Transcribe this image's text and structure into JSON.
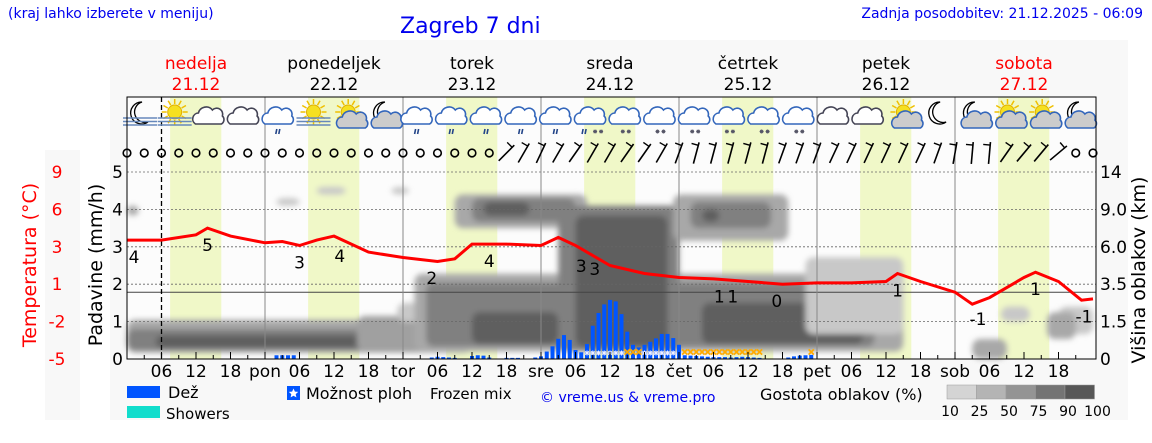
{
  "header": {
    "hint": "(kraj lahko izberete v meniju)",
    "title": "Zagreb 7 dni",
    "updated": "Zadnja posodobitev: 21.12.2025 - 06:09"
  },
  "days": [
    {
      "name": "nedelja",
      "date": "21.12",
      "weekend": true
    },
    {
      "name": "ponedeljek",
      "date": "22.12",
      "weekend": false
    },
    {
      "name": "torek",
      "date": "23.12",
      "weekend": false
    },
    {
      "name": "sreda",
      "date": "24.12",
      "weekend": false
    },
    {
      "name": "četrtek",
      "date": "25.12",
      "weekend": false
    },
    {
      "name": "petek",
      "date": "26.12",
      "weekend": false
    },
    {
      "name": "sobota",
      "date": "27.12",
      "weekend": true
    }
  ],
  "colors": {
    "weekend": "#ff0000",
    "weekday": "#000000",
    "temperature": "#ff0000",
    "rain": "#0055ff",
    "showers": "#11ddcc",
    "frozen": "#ffaa00",
    "daylight": "#f0f8c8"
  },
  "chart_data": {
    "type": "meteogram",
    "x_tick_labels": [
      "06",
      "12",
      "18",
      "pon",
      "06",
      "12",
      "18",
      "tor",
      "06",
      "12",
      "18",
      "sre",
      "06",
      "12",
      "18",
      "čet",
      "06",
      "12",
      "18",
      "pet",
      "06",
      "12",
      "18",
      "sob",
      "06",
      "12",
      "18"
    ],
    "now_hour": 6,
    "daylight": {
      "sunrise_hour": 7.5,
      "sunset_hour": 16.4
    },
    "precip_axis": {
      "label": "Padavine (mm/h)",
      "ticks": [
        "0",
        "1",
        "2",
        "3",
        "4",
        "5"
      ],
      "range": [
        0,
        5
      ]
    },
    "temp_axis": {
      "label": "Temperatura (°C)",
      "ticks": [
        "-5",
        "-2",
        "1",
        "3",
        "6",
        "9"
      ],
      "range": [
        -5,
        9
      ]
    },
    "cloud_axis": {
      "label": "Višina oblakov (km)",
      "ticks": [
        "0",
        "1.5",
        "3.5",
        "6.0",
        "9.0",
        "14"
      ],
      "knots_km": [
        0,
        1.5,
        3.5,
        6,
        9,
        14
      ]
    },
    "temperature": [
      [
        0,
        3.9
      ],
      [
        6,
        3.9
      ],
      [
        12,
        4.3
      ],
      [
        14,
        4.8
      ],
      [
        18,
        4.2
      ],
      [
        24,
        3.7
      ],
      [
        27,
        3.8
      ],
      [
        30,
        3.5
      ],
      [
        33,
        3.9
      ],
      [
        36,
        4.2
      ],
      [
        42,
        3.0
      ],
      [
        48,
        2.6
      ],
      [
        54,
        2.3
      ],
      [
        57,
        2.5
      ],
      [
        60,
        3.6
      ],
      [
        66,
        3.6
      ],
      [
        72,
        3.5
      ],
      [
        75,
        4.1
      ],
      [
        78,
        3.5
      ],
      [
        84,
        2.0
      ],
      [
        90,
        1.4
      ],
      [
        96,
        1.1
      ],
      [
        102,
        1.0
      ],
      [
        108,
        0.8
      ],
      [
        114,
        0.6
      ],
      [
        120,
        0.7
      ],
      [
        126,
        0.7
      ],
      [
        132,
        0.8
      ],
      [
        134,
        1.4
      ],
      [
        138,
        0.8
      ],
      [
        144,
        0.0
      ],
      [
        147,
        -0.9
      ],
      [
        150,
        -0.4
      ],
      [
        156,
        1.1
      ],
      [
        158,
        1.5
      ],
      [
        162,
        0.8
      ],
      [
        166,
        -0.6
      ],
      [
        168,
        -0.5
      ]
    ],
    "temperature_labels": [
      [
        0,
        "4"
      ],
      [
        14,
        "5"
      ],
      [
        30,
        "3"
      ],
      [
        37,
        "4"
      ],
      [
        53,
        "2"
      ],
      [
        63,
        "4"
      ],
      [
        79,
        "3"
      ],
      [
        80,
        "3"
      ],
      [
        103,
        "1"
      ],
      [
        104,
        "1"
      ],
      [
        113,
        "0"
      ],
      [
        134,
        "1"
      ],
      [
        148,
        "-1"
      ],
      [
        158,
        "1"
      ],
      [
        167,
        "-1"
      ]
    ],
    "precipitation_mm_h": [
      [
        26,
        0.1
      ],
      [
        27,
        0.1
      ],
      [
        28,
        0.1
      ],
      [
        29,
        0.1
      ],
      [
        53,
        0.04
      ],
      [
        54,
        0.06
      ],
      [
        55,
        0.05
      ],
      [
        56,
        0.04
      ],
      [
        57,
        0.03
      ],
      [
        60,
        0.08
      ],
      [
        61,
        0.1
      ],
      [
        62,
        0.09
      ],
      [
        63,
        0.04
      ],
      [
        66,
        0.03
      ],
      [
        67,
        0.03
      ],
      [
        68,
        0.03
      ],
      [
        71,
        0.04
      ],
      [
        72,
        0.07
      ],
      [
        73,
        0.2
      ],
      [
        74,
        0.34
      ],
      [
        75,
        0.54
      ],
      [
        76,
        0.64
      ],
      [
        77,
        0.51
      ],
      [
        78,
        0.24
      ],
      [
        79,
        0.18
      ],
      [
        80,
        0.4
      ],
      [
        81,
        0.89
      ],
      [
        82,
        1.23
      ],
      [
        83,
        1.46
      ],
      [
        84,
        1.58
      ],
      [
        85,
        1.54
      ],
      [
        86,
        1.2
      ],
      [
        87,
        0.73
      ],
      [
        88,
        0.38
      ],
      [
        89,
        0.31
      ],
      [
        90,
        0.38
      ],
      [
        91,
        0.46
      ],
      [
        92,
        0.55
      ],
      [
        93,
        0.67
      ],
      [
        94,
        0.67
      ],
      [
        95,
        0.56
      ],
      [
        96,
        0.38
      ],
      [
        97,
        0.1
      ],
      [
        98,
        0.09
      ],
      [
        99,
        0.08
      ],
      [
        100,
        0.07
      ],
      [
        101,
        0.06
      ],
      [
        102,
        0.05
      ],
      [
        103,
        0.05
      ],
      [
        104,
        0.05
      ],
      [
        105,
        0.04
      ],
      [
        106,
        0.05
      ],
      [
        107,
        0.06
      ],
      [
        108,
        0.05
      ],
      [
        109,
        0.04
      ],
      [
        110,
        0.03
      ],
      [
        115,
        0.04
      ],
      [
        116,
        0.07
      ],
      [
        117,
        0.09
      ],
      [
        118,
        0.1
      ],
      [
        119,
        0.11
      ]
    ],
    "frozen_mix_hours": [
      87,
      88,
      89,
      97,
      98,
      99,
      100,
      101,
      102,
      103,
      104,
      105,
      106,
      107,
      108,
      109,
      110,
      119
    ],
    "shower_chance_hours": [
      80,
      81,
      82,
      83,
      84,
      85,
      86,
      90,
      91,
      92,
      93,
      94,
      95
    ],
    "cloud_cover": [
      [
        0,
        60,
        0.25,
        1.6,
        50
      ],
      [
        0,
        55,
        0.35,
        1.2,
        75
      ],
      [
        5,
        50,
        0.45,
        0.95,
        90
      ],
      [
        40,
        60,
        0.3,
        1.8,
        60
      ],
      [
        0,
        2,
        8.5,
        9.5,
        50
      ],
      [
        26,
        30,
        9.5,
        10.5,
        25
      ],
      [
        33,
        38,
        11,
        12,
        25
      ],
      [
        46,
        49,
        11,
        12,
        25
      ],
      [
        47,
        52,
        1.5,
        2.5,
        25
      ],
      [
        50,
        135,
        0.3,
        4.2,
        50
      ],
      [
        52,
        130,
        0.5,
        3.6,
        75
      ],
      [
        60,
        75,
        0.6,
        2,
        90
      ],
      [
        100,
        128,
        0.6,
        2.5,
        90
      ],
      [
        57,
        80,
        7.5,
        11,
        50
      ],
      [
        60,
        78,
        8,
        10.5,
        75
      ],
      [
        62,
        70,
        8.5,
        10,
        90
      ],
      [
        75,
        96,
        0.3,
        9.5,
        75
      ],
      [
        78,
        94,
        0.5,
        8.5,
        90
      ],
      [
        95,
        115,
        6.5,
        11,
        50
      ],
      [
        98,
        112,
        7.5,
        10,
        75
      ],
      [
        100,
        103,
        8,
        9,
        90
      ],
      [
        118,
        135,
        1,
        5.3,
        25
      ],
      [
        147,
        153,
        0,
        0.8,
        50
      ],
      [
        152,
        157,
        1.5,
        2.3,
        25
      ],
      [
        162,
        168,
        1,
        2.3,
        25
      ],
      [
        160,
        165,
        0.8,
        2,
        50
      ]
    ],
    "weather_icons": [
      "moon-fog",
      "sun-fog",
      "cloud",
      "cloud",
      "cloud-rain",
      "sun-fog",
      "sun-cloud",
      "moon-cloud",
      "cloud-rain",
      "cloud-rain",
      "cloud-rain",
      "cloud-rain",
      "cloud-rain",
      "cloud-sleet",
      "cloud-snow",
      "cloud-snow",
      "cloud-snow",
      "cloud-snow",
      "cloud-snow",
      "cloud-snow",
      "cloud",
      "cloud",
      "sun-cloud",
      "moon",
      "moon-cloud",
      "sun-cloud",
      "sun-cloud",
      "moon-cloud"
    ],
    "wind_direction_deg": [
      null,
      null,
      null,
      null,
      null,
      null,
      null,
      null,
      null,
      null,
      null,
      null,
      null,
      null,
      null,
      null,
      null,
      null,
      null,
      null,
      null,
      null,
      45,
      30,
      25,
      30,
      35,
      30,
      30,
      35,
      35,
      30,
      20,
      15,
      15,
      15,
      15,
      15,
      20,
      20,
      20,
      25,
      25,
      25,
      25,
      25,
      25,
      20,
      10,
      5,
      5,
      35,
      40,
      40,
      50,
      null,
      null
    ]
  },
  "legend": {
    "rain": "Dež",
    "showers": "Showers",
    "shower_chance": "Možnost ploh",
    "frozen_mix": "Frozen mix",
    "copyright": "© vreme.us & vreme.pro",
    "cloud_density": "Gostota oblakov (%)",
    "density_levels": [
      "10",
      "25",
      "50",
      "75",
      "90",
      "100"
    ]
  }
}
